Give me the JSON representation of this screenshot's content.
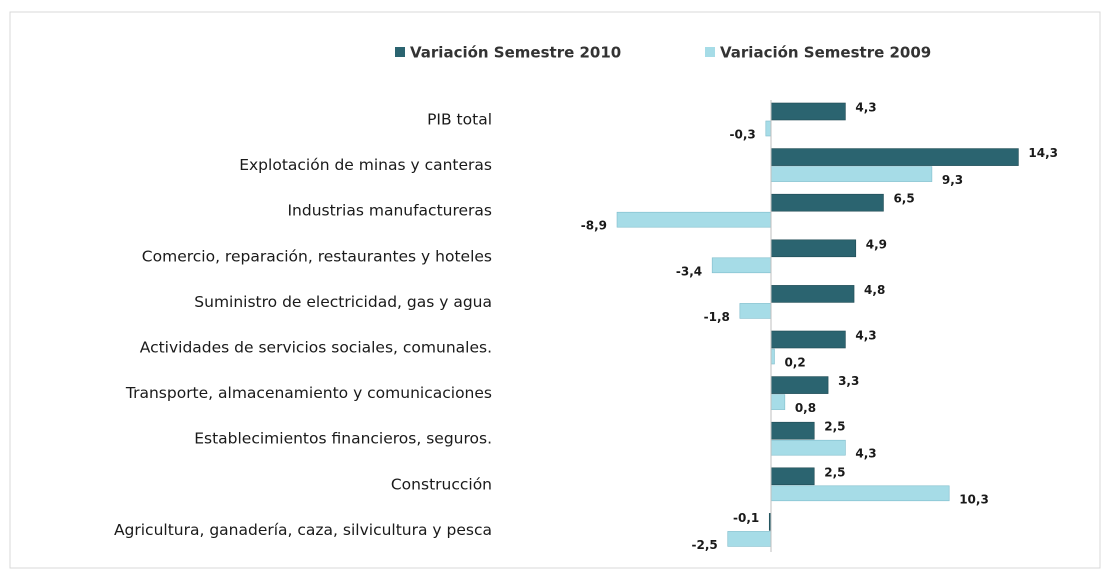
{
  "chart_data": {
    "type": "bar",
    "orientation": "horizontal",
    "categories": [
      "PIB total",
      "Explotación de minas y canteras",
      "Industrias manufactureras",
      "Comercio, reparación, restaurantes y hoteles",
      "Suministro de electricidad, gas y agua",
      "Actividades de servicios sociales, comunales.",
      "Transporte, almacenamiento y comunicaciones",
      "Establecimientos financieros, seguros.",
      "Construcción",
      "Agricultura, ganadería, caza, silvicultura y pesca"
    ],
    "series": [
      {
        "name": "Variación Semestre 2010",
        "color": "#2b6470",
        "values": [
          4.3,
          14.3,
          6.5,
          4.9,
          4.8,
          4.3,
          3.3,
          2.5,
          2.5,
          -0.1
        ],
        "value_labels": [
          "4,3",
          "14,3",
          "6,5",
          "4,9",
          "4,8",
          "4,3",
          "3,3",
          "2,5",
          "2,5",
          "-0,1"
        ]
      },
      {
        "name": "Variación Semestre 2009",
        "color": "#a6dce7",
        "values": [
          -0.3,
          9.3,
          -8.9,
          -3.4,
          -1.8,
          0.2,
          0.8,
          4.3,
          10.3,
          -2.5
        ],
        "value_labels": [
          "-0,3",
          "9,3",
          "-8,9",
          "-3,4",
          "-1,8",
          "0,2",
          "0,8",
          "4,3",
          "10,3",
          "-2,5"
        ]
      }
    ],
    "legend": "top"
  }
}
